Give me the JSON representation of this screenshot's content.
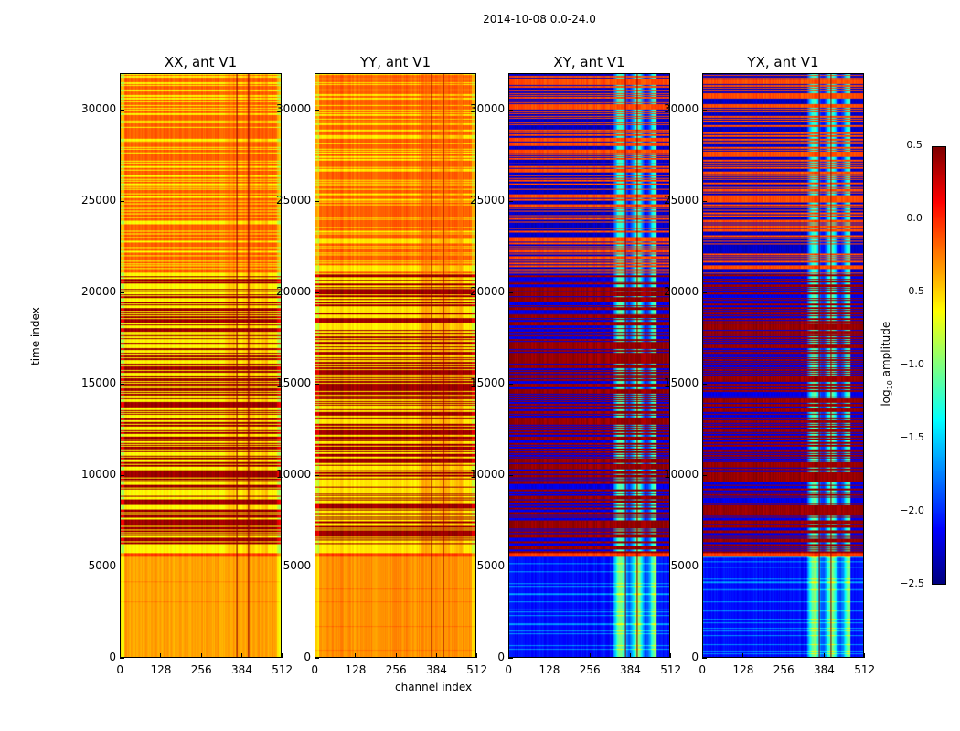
{
  "chart_data": {
    "type": "heatmap",
    "title": "2014-10-08 0.0-24.0",
    "xlabel": "channel index",
    "ylabel": "time index",
    "xlim": [
      0,
      512
    ],
    "ylim": [
      0,
      32000
    ],
    "xticks": [
      "0",
      "128",
      "256",
      "384",
      "512"
    ],
    "yticks": [
      "0",
      "5000",
      "10000",
      "15000",
      "20000",
      "25000",
      "30000"
    ],
    "colorbar": {
      "label_prefix": "log",
      "label_sub": "10",
      "label_suffix": " amplitude",
      "colormap": "jet",
      "range": [
        -2.5,
        0.5
      ],
      "ticks": [
        "0.5",
        "0.0",
        "−0.5",
        "−1.0",
        "−1.5",
        "−2.0",
        "−2.5"
      ]
    },
    "panels": [
      {
        "title": "XX, ant V1",
        "kind": "parallel",
        "segments": [
          {
            "t": [
              0,
              5500
            ],
            "base": -0.35,
            "alt": -0.25,
            "stripe": 0.05
          },
          {
            "t": [
              5500,
              5700
            ],
            "base": -0.05,
            "alt": -0.05,
            "stripe": 0
          },
          {
            "t": [
              5700,
              6200
            ],
            "base": -0.6,
            "alt": -0.6,
            "stripe": 0
          },
          {
            "t": [
              6200,
              21000
            ],
            "base": -0.6,
            "alt": 0.42,
            "stripe": 0.5
          },
          {
            "t": [
              21000,
              32000
            ],
            "base": -0.15,
            "alt": -0.6,
            "stripe": 0.35
          }
        ],
        "feature_channels": [
          330,
          470
        ],
        "feature_offset": 0.15
      },
      {
        "title": "YY, ant V1",
        "kind": "parallel",
        "segments": [
          {
            "t": [
              0,
              5500
            ],
            "base": -0.3,
            "alt": -0.2,
            "stripe": 0.05
          },
          {
            "t": [
              5500,
              5700
            ],
            "base": -0.05,
            "alt": -0.05,
            "stripe": 0
          },
          {
            "t": [
              5700,
              6200
            ],
            "base": -0.55,
            "alt": -0.55,
            "stripe": 0
          },
          {
            "t": [
              6200,
              21000
            ],
            "base": -0.55,
            "alt": 0.42,
            "stripe": 0.5
          },
          {
            "t": [
              21000,
              32000
            ],
            "base": -0.15,
            "alt": -0.55,
            "stripe": 0.35
          }
        ],
        "feature_channels": [
          330,
          470
        ],
        "feature_offset": 0.2
      },
      {
        "title": "XY, ant V1",
        "kind": "cross",
        "segments": [
          {
            "t": [
              0,
              5500
            ],
            "base": -2.1,
            "alt": -1.7,
            "stripe": 0.15
          },
          {
            "t": [
              5500,
              5700
            ],
            "base": -0.05,
            "alt": -0.05,
            "stripe": 0
          },
          {
            "t": [
              5700,
              21000
            ],
            "base": 0.42,
            "alt": -2.2,
            "stripe": 0.4
          },
          {
            "t": [
              21000,
              32000
            ],
            "base": -0.1,
            "alt": -2.3,
            "stripe": 0.5
          }
        ],
        "feature_channels": [
          330,
          470
        ],
        "feature_offset": 1.1
      },
      {
        "title": "YX, ant V1",
        "kind": "cross",
        "segments": [
          {
            "t": [
              0,
              5500
            ],
            "base": -2.1,
            "alt": -1.7,
            "stripe": 0.15
          },
          {
            "t": [
              5500,
              5700
            ],
            "base": -0.05,
            "alt": -0.05,
            "stripe": 0
          },
          {
            "t": [
              5700,
              21000
            ],
            "base": 0.42,
            "alt": -2.2,
            "stripe": 0.4
          },
          {
            "t": [
              21000,
              32000
            ],
            "base": -0.1,
            "alt": -2.3,
            "stripe": 0.5
          }
        ],
        "feature_channels": [
          330,
          470
        ],
        "feature_offset": 1.1
      }
    ]
  }
}
